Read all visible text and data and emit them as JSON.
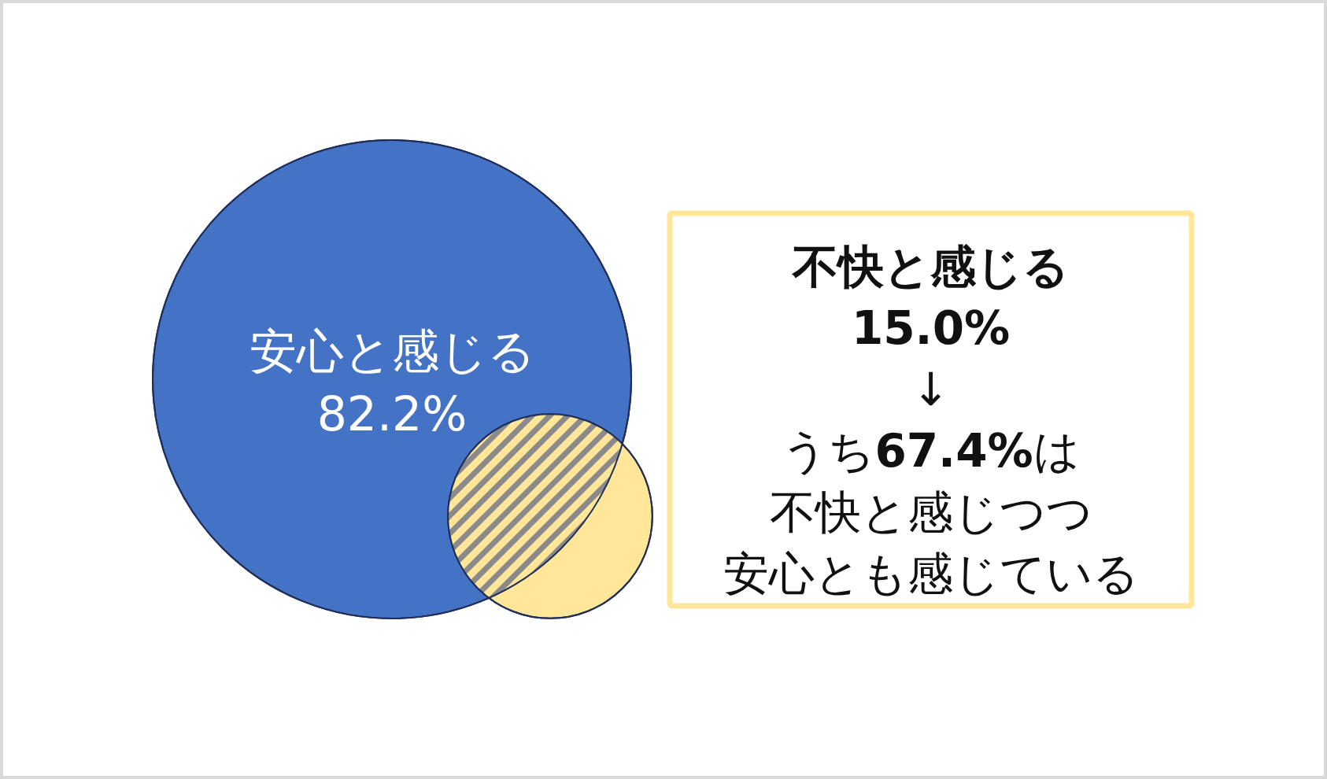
{
  "chart_data": {
    "type": "other",
    "categories": [
      "安心と感じる",
      "不快と感じる"
    ],
    "values": [
      82.2,
      15.0
    ],
    "value_labels": [
      "82.2%",
      "15.0%"
    ],
    "colors": [
      "#4472c4",
      "#ffe699"
    ],
    "annotations": [
      "↓",
      "うち67.4%は",
      "不快と感じつつ",
      "安心とも感じている"
    ]
  }
}
